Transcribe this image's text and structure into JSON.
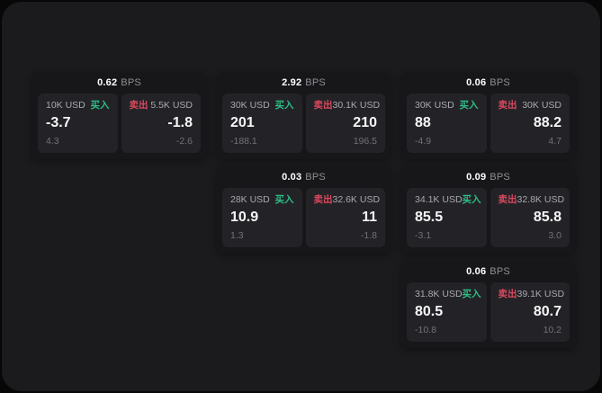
{
  "colors": {
    "page_bg": "#070708",
    "panel_bg": "#1b1b1d",
    "card_bg": "#17171a",
    "cell_bg": "#232327",
    "buy_green": "#2ebd85",
    "sell_red": "#d9495f",
    "text_primary": "#f7f7f8",
    "text_muted": "#a8a9ad",
    "text_dim": "#717277"
  },
  "labels": {
    "bps_unit": "BPS",
    "buy": "买入",
    "sell": "卖出"
  },
  "cards": [
    {
      "bps": "0.62",
      "row": 1,
      "col": 1,
      "buy": {
        "size": "10K USD",
        "price": "-3.7",
        "delta": "4.3"
      },
      "sell": {
        "size": "5.5K USD",
        "price": "-1.8",
        "delta": "-2.6"
      }
    },
    {
      "bps": "2.92",
      "row": 1,
      "col": 2,
      "buy": {
        "size": "30K USD",
        "price": "201",
        "delta": "-188.1"
      },
      "sell": {
        "size": "30.1K USD",
        "price": "210",
        "delta": "196.5"
      }
    },
    {
      "bps": "0.06",
      "row": 1,
      "col": 3,
      "buy": {
        "size": "30K USD",
        "price": "88",
        "delta": "-4.9"
      },
      "sell": {
        "size": "30K USD",
        "price": "88.2",
        "delta": "4.7"
      }
    },
    {
      "bps": "0.03",
      "row": 2,
      "col": 2,
      "buy": {
        "size": "28K USD",
        "price": "10.9",
        "delta": "1.3"
      },
      "sell": {
        "size": "32.6K USD",
        "price": "11",
        "delta": "-1.8"
      }
    },
    {
      "bps": "0.09",
      "row": 2,
      "col": 3,
      "buy": {
        "size": "34.1K USD",
        "price": "85.5",
        "delta": "-3.1"
      },
      "sell": {
        "size": "32.8K USD",
        "price": "85.8",
        "delta": "3.0"
      }
    },
    {
      "bps": "0.06",
      "row": 3,
      "col": 3,
      "buy": {
        "size": "31.8K USD",
        "price": "80.5",
        "delta": "-10.8"
      },
      "sell": {
        "size": "39.1K USD",
        "price": "80.7",
        "delta": "10.2"
      }
    }
  ]
}
